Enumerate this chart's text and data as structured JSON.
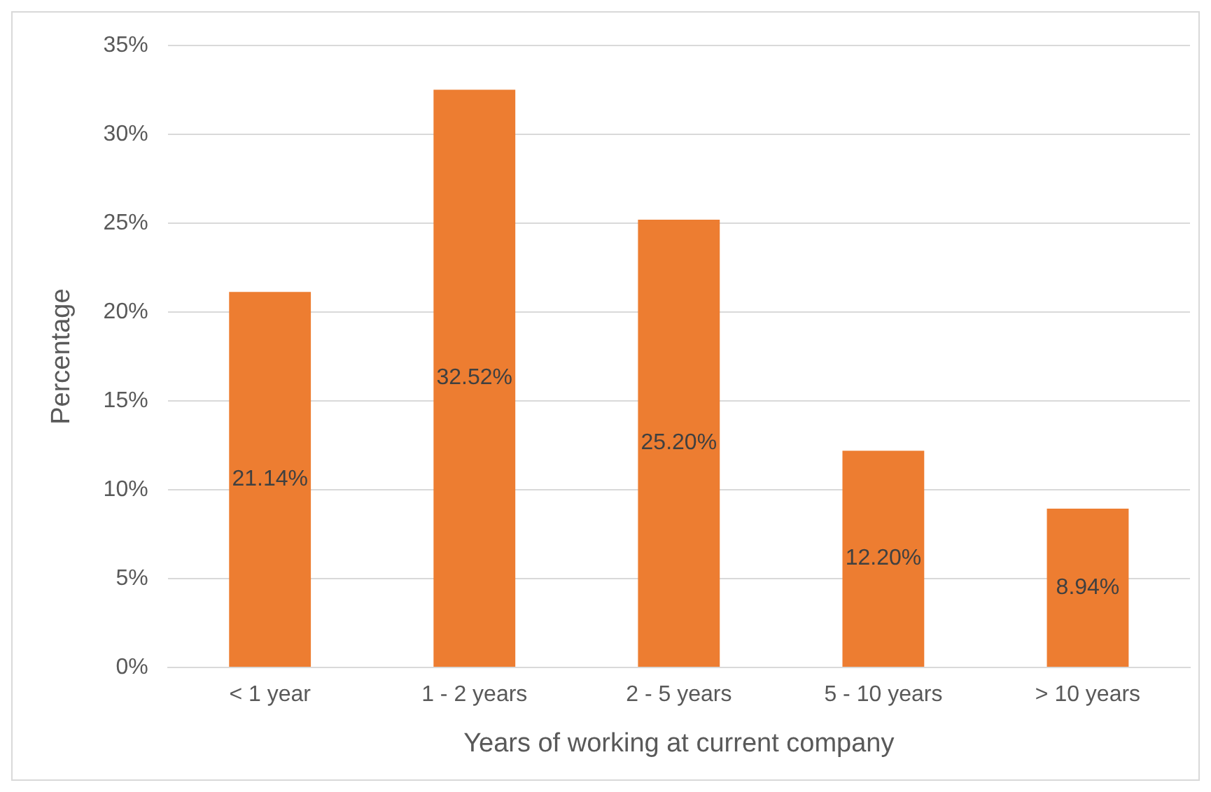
{
  "chart_data": {
    "type": "bar",
    "xlabel": "Years of working at current company",
    "ylabel": "Percentage",
    "categories": [
      "< 1 year",
      "1 - 2 years",
      "2 - 5 years",
      "5 - 10 years",
      "> 10 years"
    ],
    "values": [
      21.14,
      32.52,
      25.2,
      12.2,
      8.94
    ],
    "value_labels": [
      "21.14%",
      "32.52%",
      "25.20%",
      "12.20%",
      "8.94%"
    ],
    "color": "#ed7d31",
    "ylim": [
      0,
      35
    ],
    "yticks": [
      {
        "value": 0,
        "label": "0%"
      },
      {
        "value": 5,
        "label": "5%"
      },
      {
        "value": 10,
        "label": "10%"
      },
      {
        "value": 15,
        "label": "15%"
      },
      {
        "value": 20,
        "label": "20%"
      },
      {
        "value": 25,
        "label": "25%"
      },
      {
        "value": 30,
        "label": "30%"
      },
      {
        "value": 35,
        "label": "35%"
      }
    ],
    "grid": "y",
    "legend": false
  }
}
